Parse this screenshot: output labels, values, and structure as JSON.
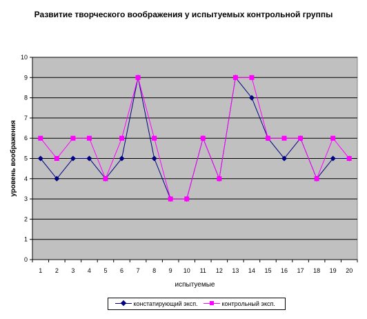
{
  "chart_data": {
    "type": "line",
    "title": "Развитие творческого воображения у испытуемых контрольной группы",
    "xlabel": "испытуемые",
    "ylabel": "уровень воображения",
    "x": [
      "1",
      "2",
      "3",
      "4",
      "5",
      "6",
      "7",
      "8",
      "9",
      "10",
      "11",
      "12",
      "13",
      "14",
      "15",
      "16",
      "17",
      "18",
      "19",
      "20"
    ],
    "ylim": [
      0,
      10
    ],
    "yticks": [
      0,
      1,
      2,
      3,
      4,
      5,
      6,
      7,
      8,
      9,
      10
    ],
    "grid": true,
    "plot_background": "#c0c0c0",
    "legend_position": "bottom",
    "series": [
      {
        "name": "констатирующий эксп.",
        "color": "#000080",
        "marker": "diamond",
        "values": [
          5,
          4,
          5,
          5,
          4,
          5,
          9,
          5,
          3,
          3,
          6,
          4,
          9,
          8,
          6,
          5,
          6,
          4,
          5,
          5
        ]
      },
      {
        "name": "контрольный эксп.",
        "color": "#ff00ff",
        "marker": "square",
        "values": [
          6,
          5,
          6,
          6,
          4,
          6,
          9,
          6,
          3,
          3,
          6,
          4,
          9,
          9,
          6,
          6,
          6,
          4,
          6,
          5
        ]
      }
    ]
  }
}
